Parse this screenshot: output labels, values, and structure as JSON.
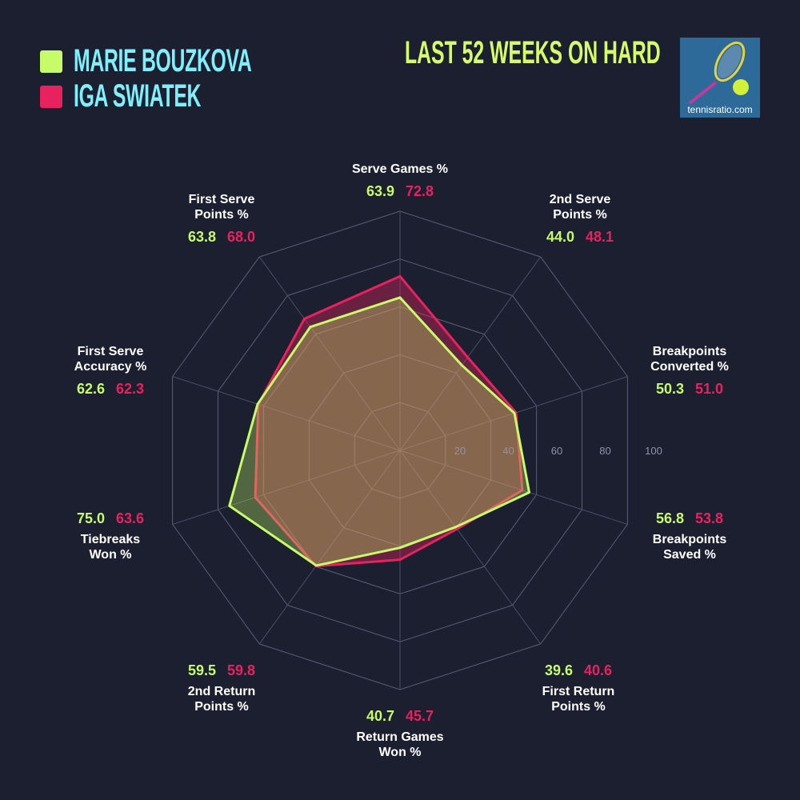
{
  "title": "LAST 52 WEEKS ON HARD",
  "logo": {
    "text": "tennisratio.com"
  },
  "colors": {
    "bouzkova": "#c6fb6a",
    "swiatek": "#e8215f",
    "background": "#1c1f30",
    "player_name": "#7ff0fb",
    "title": "#d6fb6a"
  },
  "chart_data": {
    "type": "radar",
    "rlim": [
      0,
      100
    ],
    "ticks": [
      "20",
      "40",
      "60",
      "80",
      "100"
    ],
    "categories": [
      "Serve Games %",
      "2nd Serve Points %",
      "Breakpoints Converted %",
      "Breakpoints Saved %",
      "First Return Points %",
      "Return Games Won %",
      "2nd Return Points %",
      "Tiebreaks Won %",
      "First Serve Accuracy %",
      "First Serve Points %"
    ],
    "series": [
      {
        "name": "MARIE BOUZKOVA",
        "values": [
          63.9,
          44.0,
          50.3,
          56.8,
          39.6,
          40.7,
          59.5,
          75.0,
          62.6,
          63.8
        ]
      },
      {
        "name": "IGA SWIATEK",
        "values": [
          72.8,
          48.1,
          51.0,
          53.8,
          40.6,
          45.7,
          59.8,
          63.6,
          62.3,
          68.0
        ]
      }
    ],
    "value_labels": {
      "bouzkova": [
        "63.9",
        "44.0",
        "50.3",
        "56.8",
        "39.6",
        "40.7",
        "59.5",
        "75.0",
        "62.6",
        "63.8"
      ],
      "swiatek": [
        "72.8",
        "48.1",
        "51.0",
        "53.8",
        "40.6",
        "45.7",
        "59.8",
        "63.6",
        "62.3",
        "68.0"
      ]
    },
    "axis_labels": [
      [
        "Serve Games %"
      ],
      [
        "2nd Serve",
        "Points %"
      ],
      [
        "Breakpoints",
        "Converted %"
      ],
      [
        "Breakpoints",
        "Saved %"
      ],
      [
        "First Return",
        "Points %"
      ],
      [
        "Return Games",
        "Won %"
      ],
      [
        "2nd Return",
        "Points %"
      ],
      [
        "Tiebreaks",
        "Won %"
      ],
      [
        "First Serve",
        "Accuracy %"
      ],
      [
        "First Serve",
        "Points %"
      ]
    ],
    "legend": "top-left",
    "grid": true
  }
}
